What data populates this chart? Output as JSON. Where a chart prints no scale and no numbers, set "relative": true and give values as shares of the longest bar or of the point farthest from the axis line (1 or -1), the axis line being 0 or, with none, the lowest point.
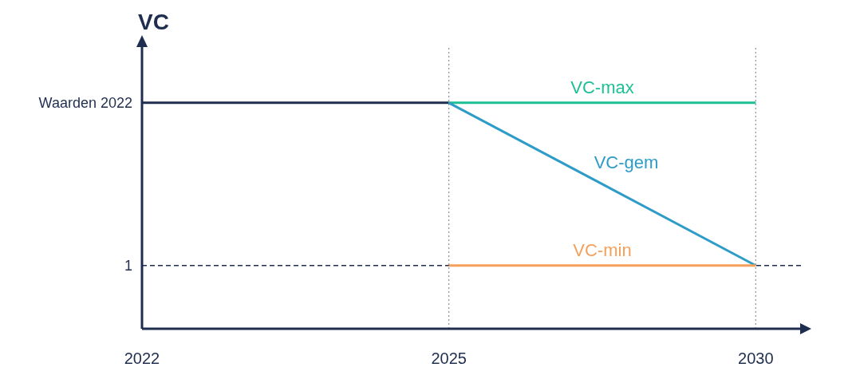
{
  "chart_data": {
    "type": "line",
    "ylabel": "VC",
    "categories": [
      "2022",
      "2025",
      "2030"
    ],
    "relative": true,
    "series": [
      {
        "color": "#1f2d4e",
        "values": [
          1,
          1,
          null
        ]
      },
      {
        "name": "VC-max",
        "color": "#1dbf95",
        "values": [
          null,
          1,
          1
        ]
      },
      {
        "name": "VC-gem",
        "color": "#2e9cc8",
        "values": [
          null,
          1,
          0.28
        ]
      },
      {
        "name": "VC-min",
        "color": "#f5a05a",
        "values": [
          null,
          0.28,
          0.28
        ]
      }
    ],
    "annotations": [
      {
        "text": "Waarden 2022",
        "x": "2022",
        "y": 1
      },
      {
        "text": "1",
        "x": "2022",
        "y": 0.28
      }
    ],
    "ref_lines": [
      {
        "axis": "y",
        "value": 0.28,
        "color": "#1f2d4e",
        "line_style": "dashed"
      },
      {
        "axis": "x",
        "value": "2022",
        "color": "#1f2d4e",
        "line_style": "solid"
      },
      {
        "axis": "x",
        "value": "2025",
        "color": "#8a8f99",
        "line_style": "dotted"
      },
      {
        "axis": "x",
        "value": "2030",
        "color": "#8a8f99",
        "line_style": "dotted"
      }
    ],
    "marker": "none",
    "line_style": "solid"
  }
}
